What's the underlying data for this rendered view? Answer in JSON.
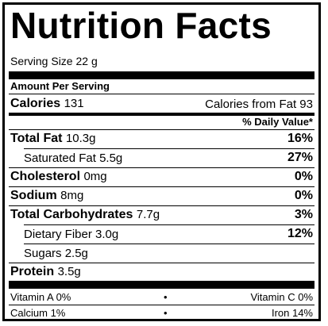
{
  "title": "Nutrition Facts",
  "serving": "Serving Size 22 g",
  "amount_header": "Amount Per Serving",
  "calories": {
    "label": "Calories",
    "value": "131",
    "from_fat": "Calories from Fat 93"
  },
  "daily_value_header": "% Daily Value*",
  "nutrients": {
    "total_fat": {
      "label": "Total Fat",
      "amount": "10.3g",
      "dv": "16%"
    },
    "saturated_fat": {
      "label": "Saturated Fat",
      "amount": "5.5g",
      "dv": "27%"
    },
    "cholesterol": {
      "label": "Cholesterol",
      "amount": "0mg",
      "dv": "0%"
    },
    "sodium": {
      "label": "Sodium",
      "amount": "8mg",
      "dv": "0%"
    },
    "total_carbs": {
      "label": "Total Carbohydrates",
      "amount": "7.7g",
      "dv": "3%"
    },
    "dietary_fiber": {
      "label": "Dietary Fiber",
      "amount": "3.0g",
      "dv": "12%"
    },
    "sugars": {
      "label": "Sugars",
      "amount": "2.5g"
    },
    "protein": {
      "label": "Protein",
      "amount": "3.5g"
    }
  },
  "vitamins": {
    "vitamin_a": "Vitamin A 0%",
    "vitamin_c": "Vitamin C 0%",
    "calcium": "Calcium 1%",
    "iron": "Iron 14%",
    "separator": "•"
  }
}
